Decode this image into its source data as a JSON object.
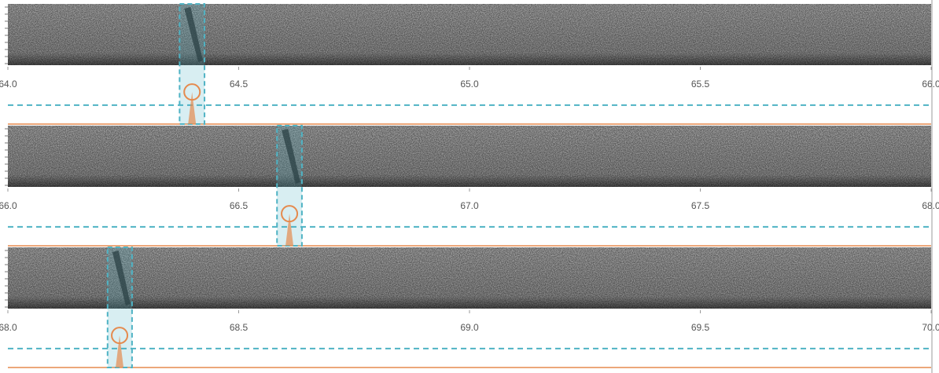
{
  "chart_data": [
    {
      "type": "detection",
      "xlim": [
        64,
        66
      ],
      "ylim": [
        0,
        1
      ],
      "xticks": [
        {
          "value": 64,
          "label": "64.0"
        },
        64.5,
        {
          "value": 65,
          "label": "65.0"
        },
        65.5,
        {
          "value": 66,
          "label": "66.0"
        }
      ],
      "threshold": 0.33,
      "threshold_color": "#4fb3c4",
      "function_color": "#e58a4e",
      "detections": [
        {
          "start": 64.372,
          "end": 64.426,
          "peak_time": 64.399,
          "peak_value": 0.56
        }
      ]
    },
    {
      "type": "detection",
      "xlim": [
        66,
        68
      ],
      "ylim": [
        0,
        1
      ],
      "xticks": [
        {
          "value": 66,
          "label": "66.0"
        },
        66.5,
        {
          "value": 67,
          "label": "67.0"
        },
        67.5,
        {
          "value": 68,
          "label": "68.0"
        }
      ],
      "threshold": 0.33,
      "threshold_color": "#4fb3c4",
      "function_color": "#e58a4e",
      "detections": [
        {
          "start": 66.583,
          "end": 66.637,
          "peak_time": 66.61,
          "peak_value": 0.56
        }
      ]
    },
    {
      "type": "detection",
      "xlim": [
        68,
        70
      ],
      "ylim": [
        0,
        1
      ],
      "xticks": [
        {
          "value": 68,
          "label": "68.0"
        },
        68.5,
        {
          "value": 69,
          "label": "69.0"
        },
        69.5,
        {
          "value": 70,
          "label": "70.0"
        }
      ],
      "threshold": 0.33,
      "threshold_color": "#4fb3c4",
      "function_color": "#e58a4e",
      "detections": [
        {
          "start": 68.216,
          "end": 68.269,
          "peak_time": 68.242,
          "peak_value": 0.56
        }
      ]
    }
  ]
}
